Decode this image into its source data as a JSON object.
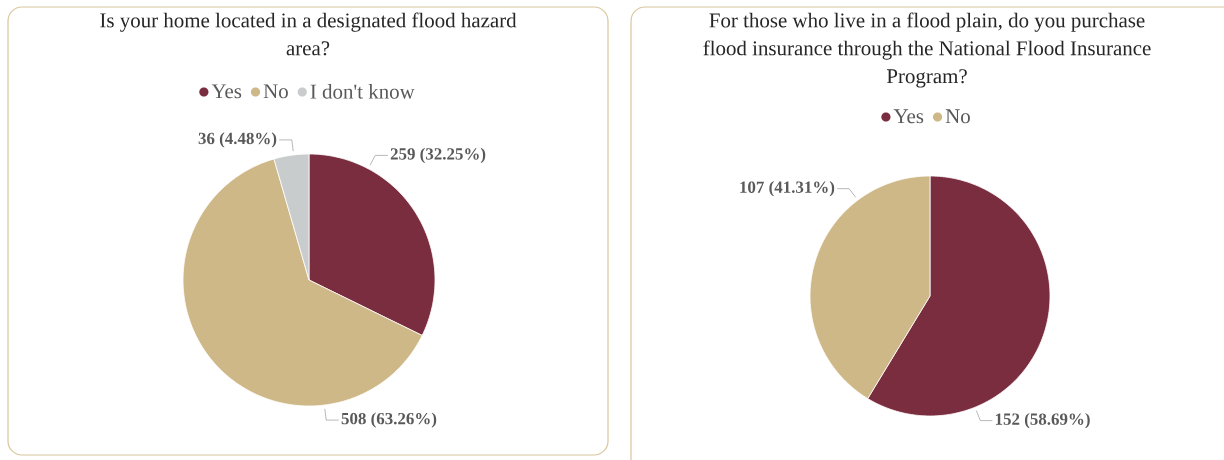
{
  "chart_data": [
    {
      "type": "pie",
      "title": "Is your home located in a designated flood hazard area?",
      "categories": [
        "Yes",
        "No",
        "I don't know"
      ],
      "values": [
        259,
        508,
        36
      ],
      "colors": [
        "#7a2d3f",
        "#cfb887",
        "#c8cccd"
      ],
      "value_labels": [
        "259 (32.25%)",
        "508 (63.26%)",
        "36 (4.48%)"
      ],
      "legend": "top"
    },
    {
      "type": "pie",
      "title": "For those who live in a flood plain, do you purchase flood insurance through the National Flood Insurance Program?",
      "categories": [
        "Yes",
        "No"
      ],
      "values": [
        152,
        107
      ],
      "colors": [
        "#7a2d3f",
        "#cfb887"
      ],
      "value_labels": [
        "152 (58.69%)",
        "107 (41.31%)"
      ],
      "legend": "top"
    }
  ]
}
